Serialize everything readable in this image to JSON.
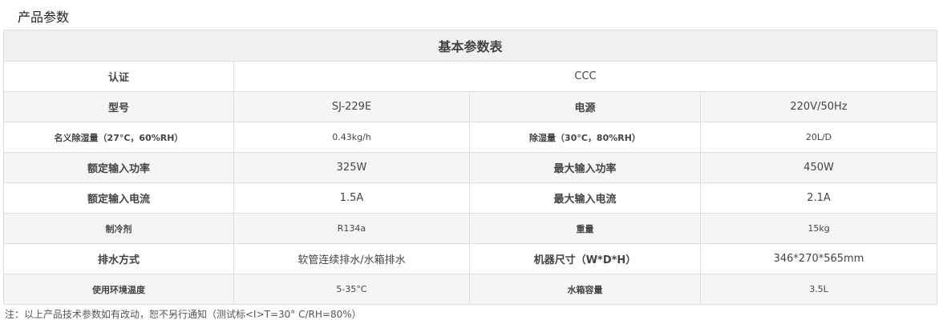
{
  "title": "产品参数",
  "table": {
    "header": "基本参数表",
    "cert": {
      "label": "认证",
      "value": "CCC"
    },
    "rows": [
      {
        "l1": "型号",
        "v1": "SJ-229E",
        "l2": "电源",
        "v2": "220V/50Hz",
        "small": false
      },
      {
        "l1": "名义除湿量（27°C，60%RH）",
        "v1": "0.43kg/h",
        "l2": "除湿量（30°C，80%RH）",
        "v2": "20L/D",
        "small": true
      },
      {
        "l1": "额定输入功率",
        "v1": "325W",
        "l2": "最大输入功率",
        "v2": "450W",
        "small": false
      },
      {
        "l1": "额定输入电流",
        "v1": "1.5A",
        "l2": "最大输入电流",
        "v2": "2.1A",
        "small": false
      },
      {
        "l1": "制冷剂",
        "v1": "R134a",
        "l2": "重量",
        "v2": "15kg",
        "small": true
      },
      {
        "l1": "排水方式",
        "v1": "软管连续排水/水箱排水",
        "l2": "机器尺寸（W*D*H）",
        "v2": "346*270*565mm",
        "small": false
      },
      {
        "l1": "使用环境温度",
        "v1": "5-35°C",
        "l2": "水箱容量",
        "v2": "3.5L",
        "small": true
      }
    ]
  },
  "note": "注：以上产品技术参数如有改动，恕不另行通知（测试标<I>T=30° C/RH=80%）"
}
